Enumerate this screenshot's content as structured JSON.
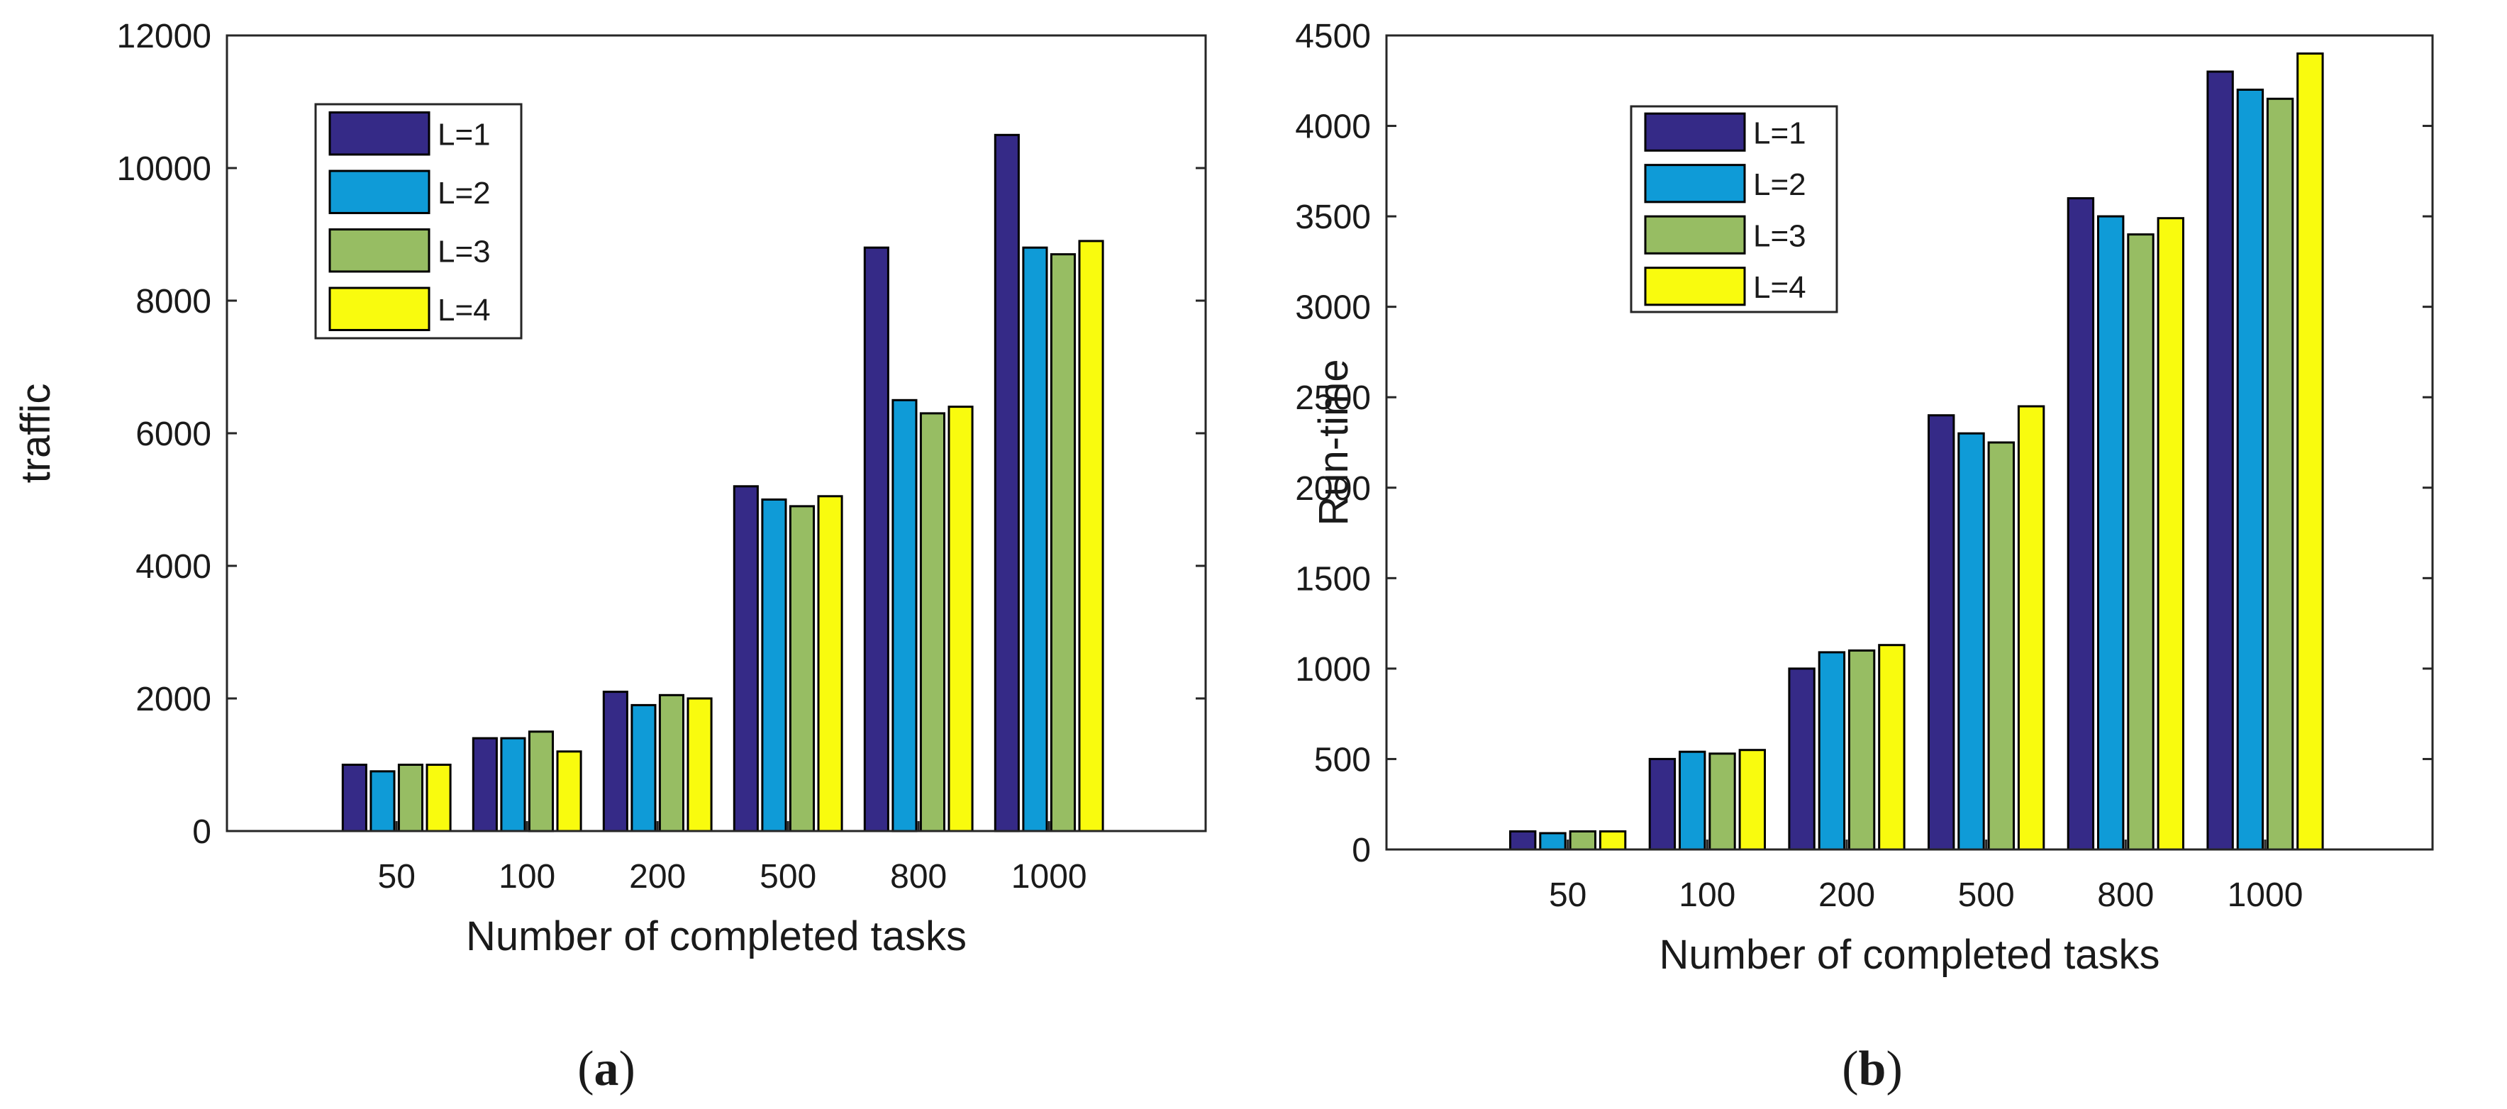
{
  "colors": {
    "L1": "#352a87",
    "L2": "#0f9bd7",
    "L3": "#97bd63",
    "L4": "#f9fb0e"
  },
  "chart_data": [
    {
      "type": "bar",
      "panel_label": "(a)",
      "panel_letter": "a",
      "categories": [
        "50",
        "100",
        "200",
        "500",
        "800",
        "1000"
      ],
      "series": [
        {
          "name": "L=1",
          "values": [
            1000,
            1400,
            2100,
            5200,
            8800,
            10500
          ]
        },
        {
          "name": "L=2",
          "values": [
            900,
            1400,
            1900,
            5000,
            6500,
            8800
          ]
        },
        {
          "name": "L=3",
          "values": [
            1000,
            1500,
            2050,
            4900,
            6300,
            8700
          ]
        },
        {
          "name": "L=4",
          "values": [
            1000,
            1200,
            2000,
            5050,
            6400,
            8900
          ]
        }
      ],
      "title": "",
      "xlabel": "Number of completed tasks",
      "ylabel": "traffic",
      "ylim": [
        0,
        12000
      ],
      "yticks": [
        "0",
        "2000",
        "4000",
        "6000",
        "8000",
        "10000",
        "12000"
      ],
      "grid": false,
      "legend": "top-left"
    },
    {
      "type": "bar",
      "panel_label": "(b)",
      "panel_letter": "b",
      "categories": [
        "50",
        "100",
        "200",
        "500",
        "800",
        "1000"
      ],
      "series": [
        {
          "name": "L=1",
          "values": [
            100,
            500,
            1000,
            2400,
            3600,
            4300
          ]
        },
        {
          "name": "L=2",
          "values": [
            90,
            540,
            1090,
            2300,
            3500,
            4200
          ]
        },
        {
          "name": "L=3",
          "values": [
            100,
            530,
            1100,
            2250,
            3400,
            4150
          ]
        },
        {
          "name": "L=4",
          "values": [
            100,
            550,
            1130,
            2450,
            3490,
            4400
          ]
        }
      ],
      "title": "",
      "xlabel": "Number of completed tasks",
      "ylabel": "Run-time",
      "ylim": [
        0,
        4500
      ],
      "yticks": [
        "0",
        "500",
        "1000",
        "1500",
        "2000",
        "2500",
        "3000",
        "3500",
        "4000",
        "4500"
      ],
      "grid": false,
      "legend": "top-left"
    }
  ]
}
